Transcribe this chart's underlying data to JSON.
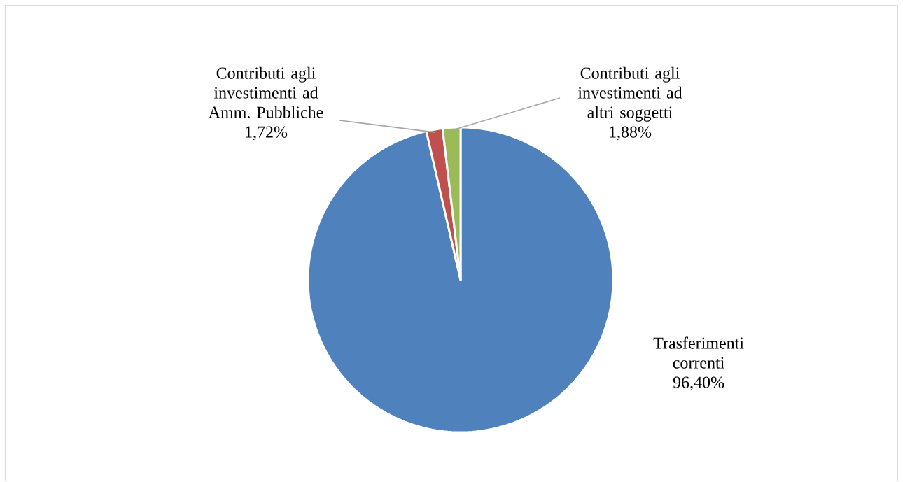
{
  "chart_data": {
    "type": "pie",
    "categories": [
      "Trasferimenti correnti",
      "Contributi agli investimenti ad Amm. Pubbliche",
      "Contributi agli investimenti ad altri soggetti"
    ],
    "values": [
      96.4,
      1.72,
      1.88
    ],
    "colors": [
      "#4f81bd",
      "#c0504d",
      "#9bbb59"
    ],
    "value_labels": [
      "96,40%",
      "1,72%",
      "1,88%"
    ]
  }
}
